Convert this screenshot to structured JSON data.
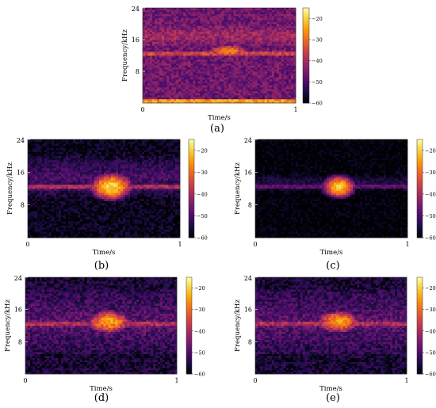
{
  "colorscale": {
    "name": "inferno",
    "stops": [
      "#000004",
      "#1b0c41",
      "#4a0c6b",
      "#781c6d",
      "#a52c60",
      "#cf4446",
      "#ed6925",
      "#fb9b06",
      "#f7d13d",
      "#fcffa4"
    ]
  },
  "chart_data": [
    {
      "type": "heatmap",
      "caption": "(a)",
      "xlabel": "Time/s",
      "ylabel": "Frequency/kHz",
      "xlim": [
        0,
        1
      ],
      "ylim": [
        0,
        24
      ],
      "xticks": [
        "0",
        "1"
      ],
      "yticks": [
        "8",
        "16",
        "24"
      ],
      "colorbar": {
        "range": [
          -60,
          -15
        ],
        "ticks": [
          "−20",
          "−30",
          "−40",
          "−50",
          "−60"
        ]
      },
      "background_db": -46,
      "noise_db": 5,
      "noise_bands": [
        {
          "f_min": 14,
          "f_max": 20,
          "level_db": -40
        }
      ],
      "low_freq_band": {
        "f_max": 0.9,
        "level_db": -25
      },
      "tone": {
        "freq_khz": 12.5,
        "width_khz": 0.5,
        "level_db": -34
      },
      "burst": {
        "t_center": 0.56,
        "t_width": 0.1,
        "f_center": 13.2,
        "f_width": 1.0,
        "level_db": -28
      }
    },
    {
      "type": "heatmap",
      "caption": "(b)",
      "xlabel": "Time/s",
      "ylabel": "Frequency/kHz",
      "xlim": [
        0,
        1
      ],
      "ylim": [
        0,
        24
      ],
      "xticks": [
        "0",
        "1"
      ],
      "yticks": [
        "8",
        "16",
        "24"
      ],
      "colorbar": {
        "range": [
          -60,
          -15
        ],
        "ticks": [
          "−20",
          "−30",
          "−40",
          "−50",
          "−60"
        ]
      },
      "background_db": -58,
      "noise_db": 4,
      "noise_bands": [
        {
          "f_min": 10,
          "f_max": 20,
          "level_db": -50
        }
      ],
      "tone": {
        "freq_khz": 12.5,
        "width_khz": 0.5,
        "level_db": -38
      },
      "burst": {
        "t_center": 0.55,
        "t_width": 0.09,
        "f_center": 12.5,
        "f_width": 1.8,
        "level_db": -20
      }
    },
    {
      "type": "heatmap",
      "caption": "(c)",
      "xlabel": "Time/s",
      "ylabel": "Frequency/kHz",
      "xlim": [
        0,
        1
      ],
      "ylim": [
        0,
        24
      ],
      "xticks": [
        "0",
        "1"
      ],
      "yticks": [
        "8",
        "16",
        "24"
      ],
      "colorbar": {
        "range": [
          -60,
          -15
        ],
        "ticks": [
          "−20",
          "−30",
          "−40",
          "−50",
          "−60"
        ]
      },
      "background_db": -60,
      "noise_db": 3,
      "noise_bands": [
        {
          "f_min": 11,
          "f_max": 16,
          "level_db": -54
        }
      ],
      "tone": {
        "freq_khz": 12.5,
        "width_khz": 0.4,
        "level_db": -46
      },
      "burst": {
        "t_center": 0.55,
        "t_width": 0.07,
        "f_center": 12.5,
        "f_width": 1.5,
        "level_db": -21
      }
    },
    {
      "type": "heatmap",
      "caption": "(d)",
      "xlabel": "Time/s",
      "ylabel": "Frequency/kHz",
      "xlim": [
        0,
        1
      ],
      "ylim": [
        0,
        24
      ],
      "xticks": [
        "0",
        "1"
      ],
      "yticks": [
        "8",
        "16",
        "24"
      ],
      "colorbar": {
        "range": [
          -60,
          -15
        ],
        "ticks": [
          "−20",
          "−30",
          "−40",
          "−50",
          "−60"
        ]
      },
      "background_db": -56,
      "noise_db": 5,
      "noise_bands": [
        {
          "f_min": 5,
          "f_max": 21,
          "level_db": -48
        }
      ],
      "tone": {
        "freq_khz": 12.5,
        "width_khz": 0.6,
        "level_db": -38
      },
      "burst": {
        "t_center": 0.55,
        "t_width": 0.1,
        "f_center": 13.0,
        "f_width": 1.6,
        "level_db": -24
      }
    },
    {
      "type": "heatmap",
      "caption": "(e)",
      "xlabel": "Time/s",
      "ylabel": "Frequency/kHz",
      "xlim": [
        0,
        1
      ],
      "ylim": [
        0,
        24
      ],
      "xticks": [
        "0",
        "1"
      ],
      "yticks": [
        "8",
        "16",
        "24"
      ],
      "colorbar": {
        "range": [
          -60,
          -15
        ],
        "ticks": [
          "−20",
          "−30",
          "−40",
          "−50",
          "−60"
        ]
      },
      "background_db": -56,
      "noise_db": 5,
      "noise_bands": [
        {
          "f_min": 5,
          "f_max": 21,
          "level_db": -48
        }
      ],
      "tone": {
        "freq_khz": 12.5,
        "width_khz": 0.6,
        "level_db": -38
      },
      "burst": {
        "t_center": 0.55,
        "t_width": 0.1,
        "f_center": 13.0,
        "f_width": 1.6,
        "level_db": -25
      }
    }
  ]
}
